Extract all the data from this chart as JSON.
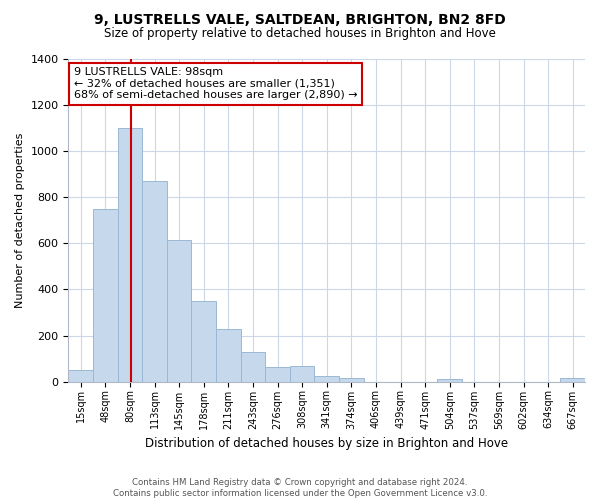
{
  "title": "9, LUSTRELLS VALE, SALTDEAN, BRIGHTON, BN2 8FD",
  "subtitle": "Size of property relative to detached houses in Brighton and Hove",
  "xlabel": "Distribution of detached houses by size in Brighton and Hove",
  "ylabel": "Number of detached properties",
  "bin_labels": [
    "15sqm",
    "48sqm",
    "80sqm",
    "113sqm",
    "145sqm",
    "178sqm",
    "211sqm",
    "243sqm",
    "276sqm",
    "308sqm",
    "341sqm",
    "374sqm",
    "406sqm",
    "439sqm",
    "471sqm",
    "504sqm",
    "537sqm",
    "569sqm",
    "602sqm",
    "634sqm",
    "667sqm"
  ],
  "bar_heights": [
    50,
    750,
    1100,
    870,
    615,
    350,
    230,
    130,
    65,
    70,
    25,
    15,
    0,
    0,
    0,
    10,
    0,
    0,
    0,
    0,
    15
  ],
  "bar_color": "#c5d8ec",
  "bar_edge_color": "#9ab8d4",
  "vline_color": "#cc0000",
  "vline_x": 2.55,
  "ylim": [
    0,
    1400
  ],
  "yticks": [
    0,
    200,
    400,
    600,
    800,
    1000,
    1200,
    1400
  ],
  "annotation_title": "9 LUSTRELLS VALE: 98sqm",
  "annotation_line1": "← 32% of detached houses are smaller (1,351)",
  "annotation_line2": "68% of semi-detached houses are larger (2,890) →",
  "annotation_box_color": "#ffffff",
  "annotation_border_color": "#cc0000",
  "footer_line1": "Contains HM Land Registry data © Crown copyright and database right 2024.",
  "footer_line2": "Contains public sector information licensed under the Open Government Licence v3.0.",
  "background_color": "#ffffff",
  "grid_color": "#ccd8e8"
}
